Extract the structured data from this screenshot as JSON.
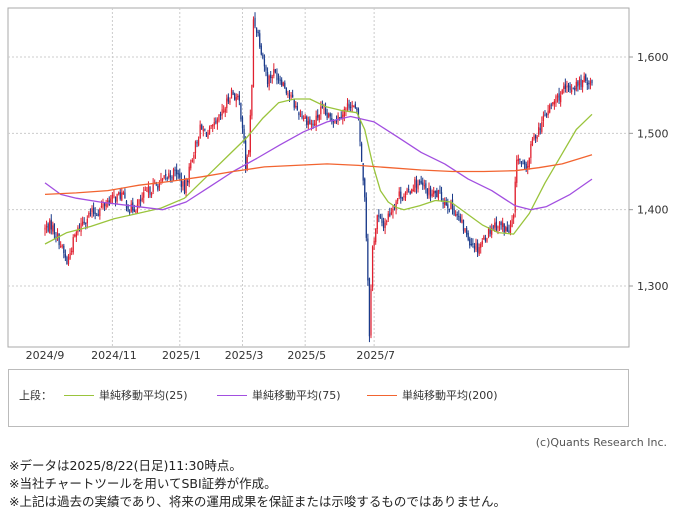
{
  "chart_data": {
    "type": "candlestick",
    "x_axis": {
      "tick_labels": [
        "2024/9",
        "2024/11",
        "2025/1",
        "2025/3",
        "2025/5",
        "2025/7"
      ]
    },
    "y_axis": {
      "tick_labels": [
        "1,600",
        "1,500",
        "1,400",
        "1,300"
      ],
      "ticks": [
        1600,
        1500,
        1400,
        1300
      ],
      "range": [
        1220,
        1665
      ]
    },
    "grid": true,
    "price_path": [
      [
        0,
        1375
      ],
      [
        4,
        1380
      ],
      [
        9,
        1360
      ],
      [
        14,
        1330
      ],
      [
        19,
        1365
      ],
      [
        24,
        1385
      ],
      [
        29,
        1395
      ],
      [
        34,
        1398
      ],
      [
        39,
        1410
      ],
      [
        44,
        1415
      ],
      [
        49,
        1420
      ],
      [
        54,
        1400
      ],
      [
        59,
        1405
      ],
      [
        64,
        1420
      ],
      [
        69,
        1430
      ],
      [
        74,
        1435
      ],
      [
        79,
        1445
      ],
      [
        84,
        1450
      ],
      [
        89,
        1425
      ],
      [
        94,
        1470
      ],
      [
        99,
        1505
      ],
      [
        104,
        1500
      ],
      [
        109,
        1510
      ],
      [
        114,
        1530
      ],
      [
        119,
        1555
      ],
      [
        124,
        1540
      ],
      [
        126,
        1510
      ],
      [
        128,
        1455
      ],
      [
        130,
        1480
      ],
      [
        132,
        1560
      ],
      [
        133,
        1650
      ],
      [
        136,
        1630
      ],
      [
        139,
        1600
      ],
      [
        142,
        1570
      ],
      [
        146,
        1580
      ],
      [
        151,
        1570
      ],
      [
        156,
        1550
      ],
      [
        161,
        1530
      ],
      [
        166,
        1520
      ],
      [
        171,
        1510
      ],
      [
        176,
        1530
      ],
      [
        181,
        1520
      ],
      [
        186,
        1520
      ],
      [
        191,
        1530
      ],
      [
        195,
        1540
      ],
      [
        198,
        1530
      ],
      [
        200,
        1520
      ],
      [
        202,
        1460
      ],
      [
        204,
        1420
      ],
      [
        206,
        1310
      ],
      [
        207,
        1240
      ],
      [
        209,
        1350
      ],
      [
        212,
        1390
      ],
      [
        216,
        1380
      ],
      [
        221,
        1400
      ],
      [
        226,
        1420
      ],
      [
        231,
        1420
      ],
      [
        236,
        1435
      ],
      [
        241,
        1430
      ],
      [
        246,
        1420
      ],
      [
        251,
        1420
      ],
      [
        256,
        1410
      ],
      [
        261,
        1400
      ],
      [
        266,
        1380
      ],
      [
        271,
        1360
      ],
      [
        276,
        1350
      ],
      [
        281,
        1365
      ],
      [
        286,
        1380
      ],
      [
        291,
        1380
      ],
      [
        296,
        1370
      ],
      [
        299,
        1390
      ],
      [
        301,
        1470
      ],
      [
        304,
        1460
      ],
      [
        307,
        1450
      ],
      [
        311,
        1490
      ],
      [
        316,
        1510
      ],
      [
        321,
        1530
      ],
      [
        326,
        1545
      ],
      [
        331,
        1555
      ],
      [
        336,
        1560
      ],
      [
        341,
        1565
      ],
      [
        346,
        1570
      ],
      [
        349,
        1565
      ]
    ],
    "series": [
      {
        "name": "単純移動平均(25)",
        "color": "#9ac43c",
        "points": [
          [
            0,
            1355
          ],
          [
            14,
            1370
          ],
          [
            29,
            1378
          ],
          [
            44,
            1388
          ],
          [
            59,
            1395
          ],
          [
            74,
            1402
          ],
          [
            89,
            1415
          ],
          [
            104,
            1445
          ],
          [
            119,
            1475
          ],
          [
            129,
            1495
          ],
          [
            139,
            1520
          ],
          [
            149,
            1540
          ],
          [
            159,
            1545
          ],
          [
            169,
            1545
          ],
          [
            179,
            1535
          ],
          [
            189,
            1530
          ],
          [
            199,
            1527
          ],
          [
            204,
            1505
          ],
          [
            209,
            1460
          ],
          [
            214,
            1425
          ],
          [
            219,
            1410
          ],
          [
            224,
            1403
          ],
          [
            229,
            1400
          ],
          [
            239,
            1405
          ],
          [
            249,
            1412
          ],
          [
            259,
            1410
          ],
          [
            269,
            1395
          ],
          [
            279,
            1380
          ],
          [
            289,
            1370
          ],
          [
            299,
            1368
          ],
          [
            309,
            1395
          ],
          [
            319,
            1435
          ],
          [
            329,
            1470
          ],
          [
            339,
            1505
          ],
          [
            349,
            1525
          ]
        ]
      },
      {
        "name": "単純移動平均(75)",
        "color": "#a24fe0",
        "points": [
          [
            0,
            1435
          ],
          [
            10,
            1420
          ],
          [
            20,
            1415
          ],
          [
            35,
            1410
          ],
          [
            55,
            1405
          ],
          [
            75,
            1400
          ],
          [
            90,
            1410
          ],
          [
            105,
            1430
          ],
          [
            120,
            1450
          ],
          [
            135,
            1467
          ],
          [
            150,
            1485
          ],
          [
            165,
            1502
          ],
          [
            180,
            1515
          ],
          [
            195,
            1522
          ],
          [
            210,
            1515
          ],
          [
            225,
            1495
          ],
          [
            240,
            1475
          ],
          [
            255,
            1460
          ],
          [
            270,
            1440
          ],
          [
            285,
            1425
          ],
          [
            300,
            1405
          ],
          [
            310,
            1400
          ],
          [
            320,
            1404
          ],
          [
            335,
            1420
          ],
          [
            349,
            1440
          ]
        ]
      },
      {
        "name": "単純移動平均(200)",
        "color": "#f26430",
        "points": [
          [
            0,
            1420
          ],
          [
            20,
            1422
          ],
          [
            40,
            1425
          ],
          [
            60,
            1432
          ],
          [
            80,
            1437
          ],
          [
            100,
            1443
          ],
          [
            120,
            1450
          ],
          [
            140,
            1456
          ],
          [
            160,
            1458
          ],
          [
            180,
            1460
          ],
          [
            200,
            1458
          ],
          [
            220,
            1455
          ],
          [
            240,
            1452
          ],
          [
            260,
            1450
          ],
          [
            280,
            1450
          ],
          [
            300,
            1451
          ],
          [
            315,
            1455
          ],
          [
            330,
            1460
          ],
          [
            349,
            1472
          ]
        ]
      }
    ]
  },
  "legend": {
    "heading": "上段：",
    "items": [
      {
        "label": "単純移動平均(25)",
        "color": "#9ac43c"
      },
      {
        "label": "単純移動平均(75)",
        "color": "#a24fe0"
      },
      {
        "label": "単純移動平均(200)",
        "color": "#f26430"
      }
    ]
  },
  "copyright": "(c)Quants Research Inc.",
  "notes": [
    "※データは2025/8/22(日足)11:30時点。",
    "※当社チャートツールを用いてSBI証券が作成。",
    "※上記は過去の実績であり、将来の運用成果を保証または示唆するものではありません。"
  ],
  "colors": {
    "up": "#e0202f",
    "down": "#1a3a8a",
    "grid": "#cccccc",
    "axis_text": "#333333"
  }
}
